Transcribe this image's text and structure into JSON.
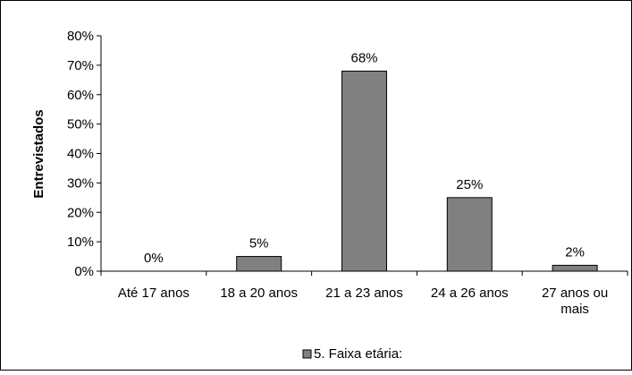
{
  "chart_data": {
    "type": "bar",
    "categories": [
      "Até 17 anos",
      "18 a 20 anos",
      "21 a 23 anos",
      "24 a 26 anos",
      [
        "27 anos ou",
        "mais"
      ]
    ],
    "series": [
      {
        "name": "5. Faixa etária:",
        "values": [
          0,
          5,
          68,
          25,
          2
        ]
      }
    ],
    "data_labels": [
      "0%",
      "5%",
      "68%",
      "25%",
      "2%"
    ],
    "ylabel": "Entrevistados",
    "xlabel": "",
    "ylim": [
      0,
      80
    ],
    "y_ticks": [
      "0%",
      "10%",
      "20%",
      "30%",
      "40%",
      "50%",
      "60%",
      "70%",
      "80%"
    ],
    "grid": false,
    "legend_position": "bottom",
    "colors": {
      "bar": "#808080",
      "bar_stroke": "#000000",
      "axis": "#000000",
      "border": "#000000"
    }
  }
}
